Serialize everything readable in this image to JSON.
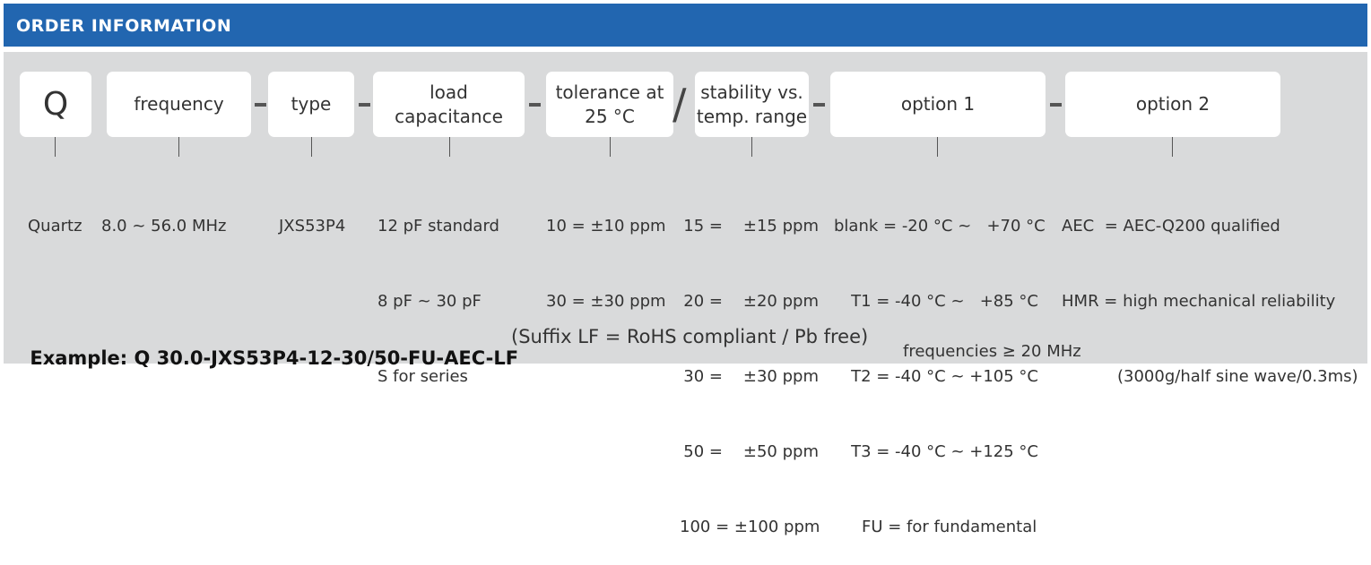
{
  "header": {
    "title": "ORDER INFORMATION"
  },
  "boxes": [
    {
      "label": "Q"
    },
    {
      "label": "frequency"
    },
    {
      "label": "type"
    },
    {
      "label": "load capacitance"
    },
    {
      "label_lines": [
        "tolerance at",
        "25 °C"
      ]
    },
    {
      "label_lines": [
        "stability vs.",
        "temp. range"
      ]
    },
    {
      "label": "option 1"
    },
    {
      "label": "option 2"
    }
  ],
  "separators": {
    "dash": "-",
    "slash": "/"
  },
  "details": {
    "quartz": [
      "Quartz"
    ],
    "frequency": [
      "8.0 ~ 56.0 MHz"
    ],
    "type": [
      "JXS53P4"
    ],
    "load_capacitance": [
      "12 pF standard",
      "8 pF ~ 30 pF",
      "S for series"
    ],
    "tolerance": [
      "10 = ±10 ppm",
      "30 = ±30 ppm"
    ],
    "stability": [
      "15 =    ±15 ppm",
      "20 =    ±20 ppm",
      "30 =    ±30 ppm",
      "50 =    ±50 ppm",
      "100 = ±100 ppm"
    ],
    "option1": [
      "blank = -20 °C ~   +70 °C",
      "T1 = -40 °C ~   +85 °C",
      "T2 = -40 °C ~ +105 °C",
      "T3 = -40 °C ~ +125 °C",
      "FU = for fundamental",
      "frequencies ≥ 20 MHz"
    ],
    "option2": [
      "AEC  = AEC-Q200 qualified",
      "HMR = high mechanical reliability",
      "(3000g/half sine wave/0.3ms)"
    ]
  },
  "example": {
    "label": "Example: Q 30.0-JXS53P4-12-30/50-FU-AEC-LF",
    "note": "(Suffix LF = RoHS compliant / Pb free)"
  }
}
